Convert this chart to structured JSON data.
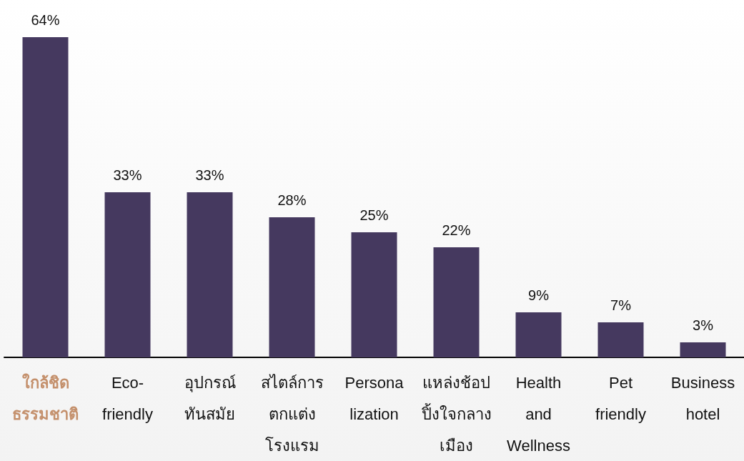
{
  "chart_data": {
    "type": "bar",
    "categories": [
      "ใกล้ชิด\nธรรมชาติ",
      "Eco-\nfriendly",
      "อุปกรณ์\nทันสมัย",
      "สไตล์การ\nตกแต่ง\nโรงแรม",
      "Persona\nlization",
      "แหล่งช้อป\nปิ้งใจกลาง\nเมือง",
      "Health\nand\nWellness",
      "Pet\nfriendly",
      "Business\nhotel"
    ],
    "values": [
      64,
      33,
      33,
      28,
      25,
      22,
      9,
      7,
      3
    ],
    "value_labels": [
      "64%",
      "33%",
      "33%",
      "28%",
      "25%",
      "22%",
      "9%",
      "7%",
      "3%"
    ],
    "color": "#45395f"
  }
}
